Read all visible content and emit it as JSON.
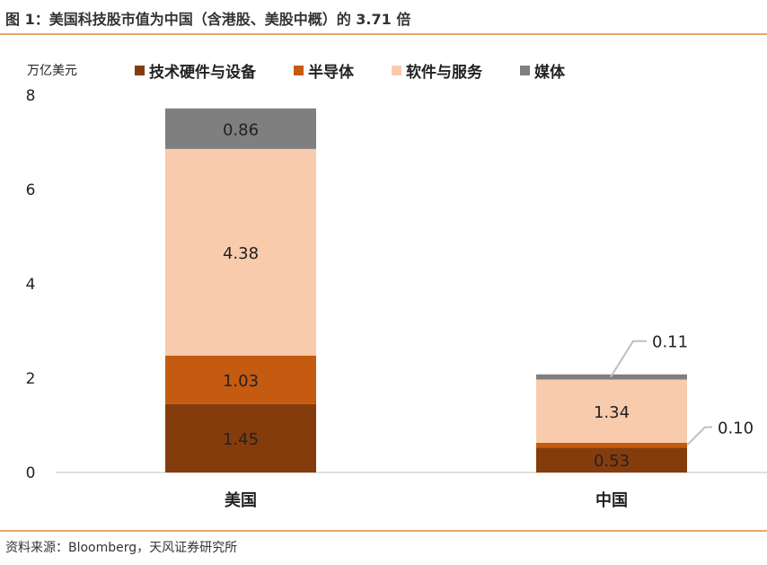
{
  "title": "图 1：美国科技股市值为中国（含港股、美股中概）的 3.71 倍",
  "source": "资料来源：Bloomberg，天风证券研究所",
  "colors": {
    "hardware": "#843c0c",
    "semiconductor": "#c55a11",
    "software": "#f8cbad",
    "media": "#7f7f7f",
    "rule": "#e8a86a"
  },
  "chart_data": {
    "type": "bar",
    "stacked": true,
    "unit_label": "万亿美元",
    "categories": [
      "美国",
      "中国"
    ],
    "ylim": [
      0,
      8
    ],
    "yticks": [
      "0",
      "2",
      "4",
      "6",
      "8"
    ],
    "grid": false,
    "legend_position": "top",
    "series": [
      {
        "name": "技术硬件与设备",
        "values": [
          1.45,
          0.53
        ],
        "color": "#843c0c",
        "labels": [
          "1.45",
          "0.53"
        ]
      },
      {
        "name": "半导体",
        "values": [
          1.03,
          0.1
        ],
        "color": "#c55a11",
        "labels": [
          "1.03",
          "0.10"
        ]
      },
      {
        "name": "软件与服务",
        "values": [
          4.38,
          1.34
        ],
        "color": "#f8cbad",
        "labels": [
          "4.38",
          "1.34"
        ]
      },
      {
        "name": "媒体",
        "values": [
          0.86,
          0.11
        ],
        "color": "#7f7f7f",
        "labels": [
          "0.86",
          "0.11"
        ]
      }
    ]
  }
}
